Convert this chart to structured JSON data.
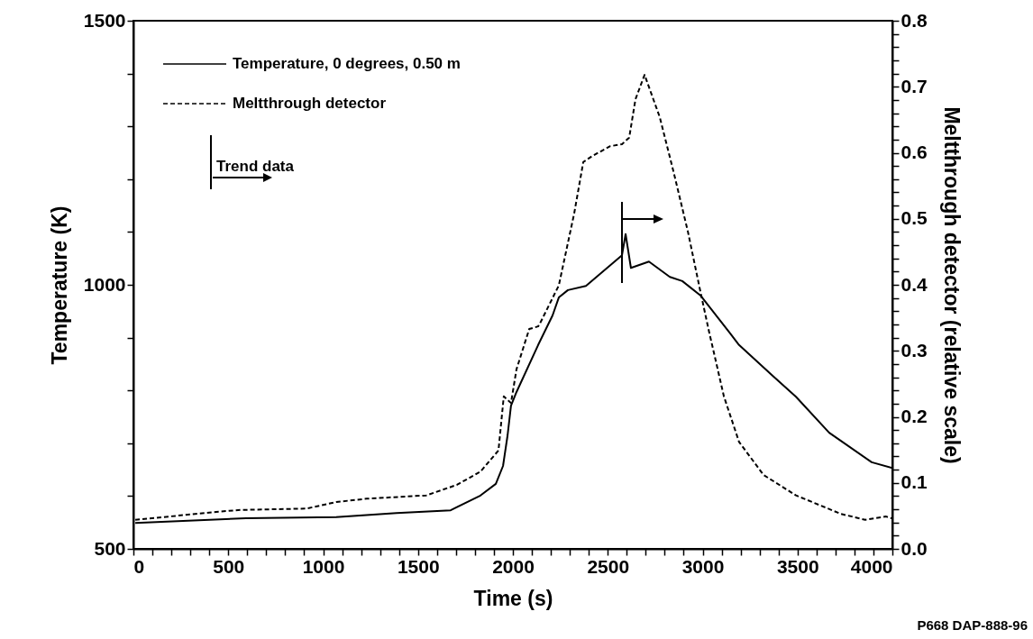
{
  "chart_data": {
    "type": "line",
    "xlabel": "Time (s)",
    "ylabel": "Temperature (K)",
    "y2label": "Meltthrough detector (relative scale)",
    "xlim": [
      0,
      4000
    ],
    "ylim": [
      500,
      1500
    ],
    "y2lim": [
      0,
      0.8
    ],
    "xticks": [
      0,
      {
        "value": 100,
        "label": null
      },
      {
        "value": 200,
        "label": null
      },
      {
        "value": 300,
        "label": null
      },
      {
        "value": 400,
        "label": null
      },
      500,
      {
        "value": 600,
        "label": null
      },
      {
        "value": 700,
        "label": null
      },
      {
        "value": 800,
        "label": null
      },
      {
        "value": 900,
        "label": null
      },
      1000,
      {
        "value": 1100,
        "label": null
      },
      {
        "value": 1200,
        "label": null
      },
      {
        "value": 1300,
        "label": null
      },
      {
        "value": 1400,
        "label": null
      },
      1500,
      {
        "value": 1600,
        "label": null
      },
      {
        "value": 1700,
        "label": null
      },
      {
        "value": 1800,
        "label": null
      },
      {
        "value": 1900,
        "label": null
      },
      2000,
      {
        "value": 2100,
        "label": null
      },
      {
        "value": 2200,
        "label": null
      },
      {
        "value": 2300,
        "label": null
      },
      {
        "value": 2400,
        "label": null
      },
      2500,
      {
        "value": 2600,
        "label": null
      },
      {
        "value": 2700,
        "label": null
      },
      {
        "value": 2800,
        "label": null
      },
      {
        "value": 2900,
        "label": null
      },
      3000,
      {
        "value": 3100,
        "label": null
      },
      {
        "value": 3200,
        "label": null
      },
      {
        "value": 3300,
        "label": null
      },
      {
        "value": 3400,
        "label": null
      },
      3500,
      {
        "value": 3600,
        "label": null
      },
      {
        "value": 3700,
        "label": null
      },
      {
        "value": 3800,
        "label": null
      },
      {
        "value": 3900,
        "label": null
      },
      4000
    ],
    "yticks": [
      500,
      {
        "value": 600,
        "label": null
      },
      {
        "value": 700,
        "label": null
      },
      {
        "value": 800,
        "label": null
      },
      {
        "value": 900,
        "label": null
      },
      1000,
      {
        "value": 1100,
        "label": null
      },
      {
        "value": 1200,
        "label": null
      },
      {
        "value": 1300,
        "label": null
      },
      {
        "value": 1400,
        "label": null
      },
      1500
    ],
    "y2ticks": [
      {
        "value": 0,
        "label": "0.0"
      },
      {
        "value": 0.02,
        "label": null
      },
      {
        "value": 0.04,
        "label": null
      },
      {
        "value": 0.06,
        "label": null
      },
      {
        "value": 0.08,
        "label": null
      },
      0.1,
      {
        "value": 0.12,
        "label": null
      },
      {
        "value": 0.14,
        "label": null
      },
      {
        "value": 0.16,
        "label": null
      },
      {
        "value": 0.18,
        "label": null
      },
      0.2,
      {
        "value": 0.22,
        "label": null
      },
      {
        "value": 0.24,
        "label": null
      },
      {
        "value": 0.26,
        "label": null
      },
      {
        "value": 0.28,
        "label": null
      },
      0.3,
      {
        "value": 0.32,
        "label": null
      },
      {
        "value": 0.34,
        "label": null
      },
      {
        "value": 0.36,
        "label": null
      },
      {
        "value": 0.38,
        "label": null
      },
      0.4,
      {
        "value": 0.42,
        "label": null
      },
      {
        "value": 0.44,
        "label": null
      },
      {
        "value": 0.46,
        "label": null
      },
      {
        "value": 0.48,
        "label": null
      },
      0.5,
      {
        "value": 0.52,
        "label": null
      },
      {
        "value": 0.54,
        "label": null
      },
      {
        "value": 0.56,
        "label": null
      },
      {
        "value": 0.58,
        "label": null
      },
      0.6,
      {
        "value": 0.62,
        "label": null
      },
      {
        "value": 0.64,
        "label": null
      },
      {
        "value": 0.66,
        "label": null
      },
      {
        "value": 0.68,
        "label": null
      },
      0.7,
      {
        "value": 0.72,
        "label": null
      },
      {
        "value": 0.74,
        "label": null
      },
      {
        "value": 0.76,
        "label": null
      },
      {
        "value": 0.78,
        "label": null
      },
      0.8
    ],
    "grid": false,
    "legend": "top left",
    "series": [
      {
        "name": "Temperature, 0 degrees, 0.50 m",
        "color": "#000000",
        "line_style": "solid",
        "x": [
          10,
          594,
          1069,
          1387,
          1672,
          1829,
          1910,
          1948,
          1972,
          1990,
          2019,
          2133,
          2209,
          2242,
          2290,
          2385,
          2575,
          2594,
          2622,
          2717,
          2827,
          2893,
          2988,
          3145,
          3192,
          3368,
          3492,
          3667,
          3891,
          4000
        ],
        "values": [
          549,
          558,
          560,
          568,
          573,
          601,
          623,
          657,
          715,
          771,
          797,
          886,
          942,
          976,
          990,
          998,
          1056,
          1096,
          1032,
          1044,
          1015,
          1007,
          980,
          908,
          886,
          828,
          788,
          720,
          664,
          653
        ]
      },
      {
        "name": "Meltthrough detector",
        "color": "#000000",
        "line_style": "dashed",
        "axis": "y2",
        "x": [
          10,
          437,
          565,
          912,
          1069,
          1230,
          1544,
          1705,
          1829,
          1924,
          1952,
          1990,
          2019,
          2086,
          2133,
          2147,
          2242,
          2323,
          2371,
          2418,
          2513,
          2575,
          2613,
          2646,
          2694,
          2774,
          2846,
          2922,
          2988,
          3036,
          3050,
          3112,
          3192,
          3321,
          3492,
          3729,
          3857,
          3967,
          4000
        ],
        "values": [
          0.044,
          0.056,
          0.059,
          0.061,
          0.071,
          0.076,
          0.081,
          0.097,
          0.117,
          0.149,
          0.231,
          0.221,
          0.272,
          0.333,
          0.337,
          0.344,
          0.399,
          0.508,
          0.586,
          0.595,
          0.61,
          0.613,
          0.623,
          0.681,
          0.718,
          0.654,
          0.572,
          0.481,
          0.39,
          0.326,
          0.309,
          0.231,
          0.162,
          0.112,
          0.081,
          0.053,
          0.044,
          0.049,
          0.046
        ]
      }
    ],
    "annotations": [
      "Trend data",
      "P668 DAP-888-96"
    ]
  }
}
